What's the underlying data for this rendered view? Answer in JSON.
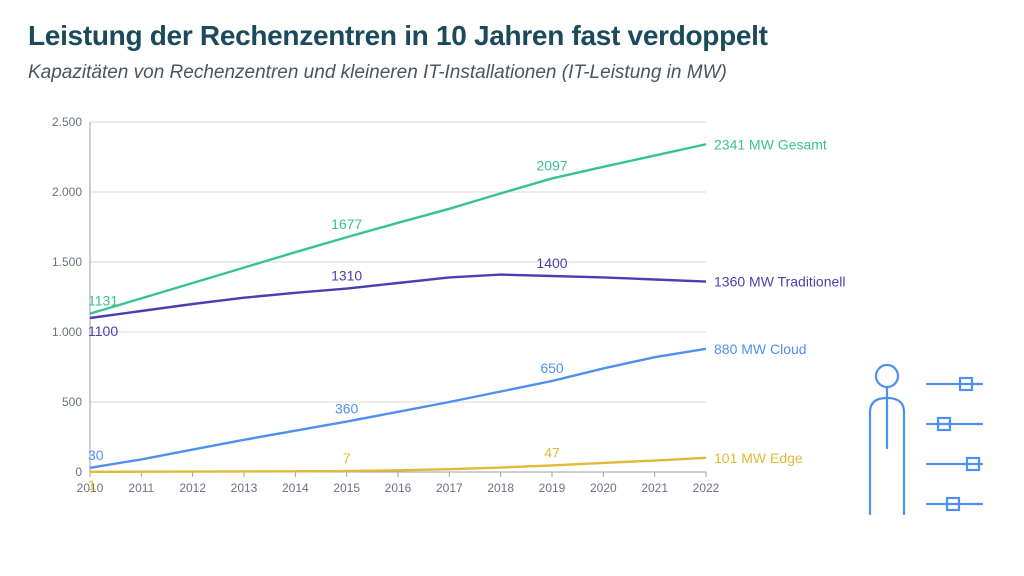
{
  "title": "Leistung der Rechenzentren in 10 Jahren fast verdoppelt",
  "subtitle": "Kapazitäten von Rechenzentren und kleineren IT-Installationen (IT-Leistung in MW)",
  "chart": {
    "type": "line",
    "x": {
      "years": [
        2010,
        2011,
        2012,
        2013,
        2014,
        2015,
        2016,
        2017,
        2018,
        2019,
        2020,
        2021,
        2022
      ]
    },
    "y": {
      "min": 0,
      "max": 2500,
      "step": 500,
      "tick_format": "de-dot"
    },
    "background_color": "#ffffff",
    "grid_color": "#d4d8de",
    "axis_color": "#9aa2ad",
    "axis_label_color": "#6b7280",
    "axis_fontsize": 12,
    "line_width": 2.4,
    "series": [
      {
        "key": "gesamt",
        "label_end": "2341 MW Gesamt",
        "color": "#39c28f",
        "values": [
          1131,
          1240,
          1350,
          1460,
          1570,
          1677,
          1780,
          1880,
          1990,
          2097,
          2180,
          2260,
          2341
        ],
        "annotations": [
          {
            "year": 2010,
            "text": "1131"
          },
          {
            "year": 2015,
            "text": "1677"
          },
          {
            "year": 2019,
            "text": "2097"
          }
        ]
      },
      {
        "key": "traditionell",
        "label_end": "1360 MW Traditionell",
        "color": "#4a3fb0",
        "values": [
          1100,
          1150,
          1200,
          1245,
          1280,
          1310,
          1350,
          1390,
          1410,
          1400,
          1390,
          1375,
          1360
        ],
        "annotations": [
          {
            "year": 2010,
            "text": "1100",
            "below": true
          },
          {
            "year": 2015,
            "text": "1310"
          },
          {
            "year": 2019,
            "text": "1400"
          }
        ]
      },
      {
        "key": "cloud",
        "label_end": "880 MW Cloud",
        "color": "#4f8ff0",
        "values": [
          30,
          90,
          160,
          230,
          295,
          360,
          430,
          500,
          575,
          650,
          740,
          820,
          880
        ],
        "annotations": [
          {
            "year": 2010,
            "text": "30"
          },
          {
            "year": 2015,
            "text": "360"
          },
          {
            "year": 2019,
            "text": "650"
          }
        ]
      },
      {
        "key": "edge",
        "label_end": "101 MW Edge",
        "color": "#e2b838",
        "values": [
          1,
          2,
          3,
          4,
          5,
          7,
          12,
          20,
          32,
          47,
          65,
          82,
          101
        ],
        "annotations": [
          {
            "year": 2010,
            "text": "1",
            "below": true
          },
          {
            "year": 2015,
            "text": "7"
          },
          {
            "year": 2019,
            "text": "47"
          }
        ]
      }
    ]
  },
  "decor_color": "#4f8ff0"
}
